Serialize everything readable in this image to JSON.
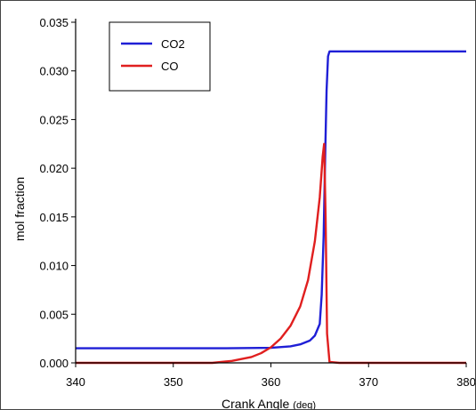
{
  "chart_data": {
    "type": "line",
    "title": "",
    "xlabel": "Crank Angle",
    "xlabel_unit": "(deg)",
    "ylabel": "mol fraction",
    "xlim": [
      340,
      380
    ],
    "ylim": [
      0,
      0.035
    ],
    "x_ticks": [
      340,
      350,
      360,
      370,
      380
    ],
    "y_ticks": [
      0.0,
      0.005,
      0.01,
      0.015,
      0.02,
      0.025,
      0.03,
      0.035
    ],
    "y_tick_labels": [
      "0.000",
      "0.005",
      "0.010",
      "0.015",
      "0.020",
      "0.025",
      "0.030",
      "0.035"
    ],
    "grid": false,
    "legend_position": "top-left",
    "series": [
      {
        "name": "CO2",
        "color": "#1f1fd6",
        "x": [
          340,
          355,
          360,
          362,
          363,
          364,
          364.5,
          365,
          365.2,
          365.4,
          365.55,
          365.7,
          365.85,
          366,
          368,
          375,
          380
        ],
        "y": [
          0.0015,
          0.0015,
          0.00155,
          0.0017,
          0.0019,
          0.0023,
          0.0028,
          0.004,
          0.007,
          0.013,
          0.021,
          0.028,
          0.0315,
          0.032,
          0.032,
          0.032,
          0.032
        ]
      },
      {
        "name": "CO",
        "color": "#e01f1f",
        "x": [
          340,
          354,
          356,
          358,
          359,
          360,
          361,
          362,
          363,
          363.8,
          364.5,
          365,
          365.3,
          365.45,
          365.6,
          365.75,
          366,
          367,
          380
        ],
        "y": [
          0,
          0,
          0.0002,
          0.0006,
          0.001,
          0.0016,
          0.0025,
          0.0038,
          0.0058,
          0.0085,
          0.0125,
          0.017,
          0.0212,
          0.0225,
          0.015,
          0.003,
          0.0001,
          0,
          0
        ]
      }
    ]
  }
}
